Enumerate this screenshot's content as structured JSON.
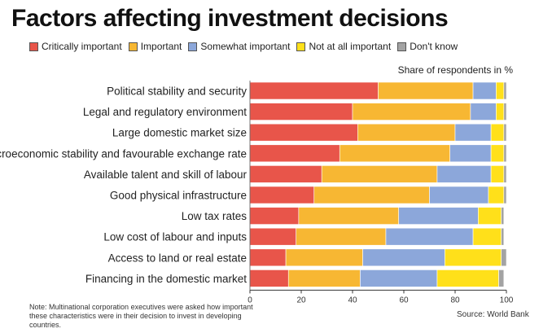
{
  "chart_data": {
    "type": "bar",
    "orientation": "horizontal",
    "stacked": true,
    "title": "Factors affecting investment decisions",
    "unit_label": "Share of respondents in %",
    "xlim": [
      0,
      100
    ],
    "xticks": [
      0,
      20,
      40,
      60,
      80,
      100
    ],
    "categories": [
      "Political stability and security",
      "Legal and regulatory environment",
      "Large domestic market size",
      "Macroeconomic stability and favourable exchange rate",
      "Available talent and skill of labour",
      "Good physical infrastructure",
      "Low tax rates",
      "Low cost of labour and inputs",
      "Access to land or real estate",
      "Financing in the domestic market"
    ],
    "series": [
      {
        "name": "Critically important",
        "color": "#e8554a",
        "values": [
          50,
          40,
          42,
          35,
          28,
          25,
          19,
          18,
          14,
          15
        ]
      },
      {
        "name": "Important",
        "color": "#f7b733",
        "values": [
          37,
          46,
          38,
          43,
          45,
          45,
          39,
          35,
          30,
          28
        ]
      },
      {
        "name": "Somewhat important",
        "color": "#8ca7da",
        "values": [
          9,
          10,
          14,
          16,
          21,
          23,
          31,
          34,
          32,
          30
        ]
      },
      {
        "name": "Not at all important",
        "color": "#ffe01a",
        "values": [
          3,
          3,
          5,
          5,
          5,
          6,
          9,
          11,
          22,
          24
        ]
      },
      {
        "name": "Don't know",
        "color": "#a3a3a3",
        "values": [
          1,
          1,
          1,
          1,
          1,
          1,
          1,
          1,
          2,
          2
        ]
      }
    ],
    "legend_position": "top-left",
    "grid": false
  },
  "note": "Note: Multinational corporation executives were asked how important these characteristics were in their decision to invest in developing countries.",
  "source": "Source: World Bank"
}
